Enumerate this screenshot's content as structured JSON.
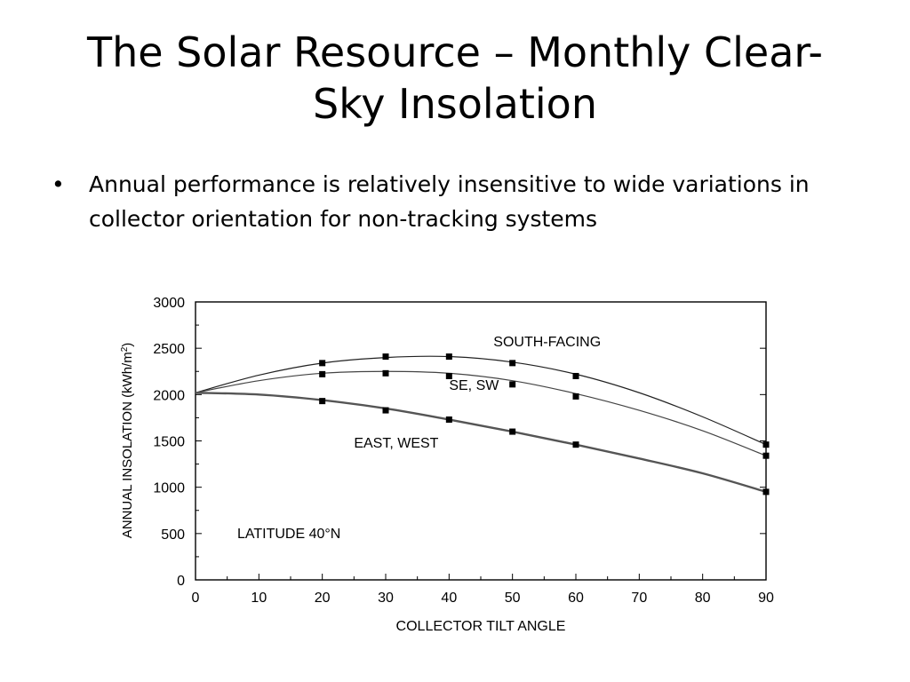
{
  "slide": {
    "title_line1": "The Solar Resource – Monthly Clear-",
    "title_line2": "Sky Insolation",
    "bullet_symbol": "•",
    "bullet_text": "Annual performance is relatively insensitive to wide variations in collector orientation for non-tracking systems"
  },
  "chart_data": {
    "type": "line",
    "xlabel": "COLLECTOR TILT ANGLE",
    "ylabel_main": "ANNUAL INSOLATION (kWh/m",
    "ylabel_sup": "2",
    "ylabel_close": ")",
    "xlim": [
      0,
      90
    ],
    "ylim": [
      0,
      3000
    ],
    "xticks": [
      0,
      10,
      20,
      30,
      40,
      50,
      60,
      70,
      80,
      90
    ],
    "yticks": [
      0,
      500,
      1000,
      1500,
      2000,
      2500,
      3000
    ],
    "annotation": "LATITUDE 40°N",
    "series": [
      {
        "name": "SOUTH-FACING",
        "curve": [
          [
            0,
            2020
          ],
          [
            10,
            2210
          ],
          [
            20,
            2340
          ],
          [
            30,
            2400
          ],
          [
            40,
            2410
          ],
          [
            50,
            2350
          ],
          [
            60,
            2220
          ],
          [
            70,
            2020
          ],
          [
            80,
            1760
          ],
          [
            90,
            1460
          ]
        ],
        "markers": [
          [
            20,
            2340
          ],
          [
            30,
            2410
          ],
          [
            40,
            2410
          ],
          [
            50,
            2340
          ],
          [
            60,
            2200
          ],
          [
            90,
            1460
          ]
        ]
      },
      {
        "name": "SE, SW",
        "curve": [
          [
            0,
            2020
          ],
          [
            10,
            2150
          ],
          [
            20,
            2230
          ],
          [
            30,
            2250
          ],
          [
            40,
            2230
          ],
          [
            50,
            2150
          ],
          [
            60,
            2010
          ],
          [
            70,
            1830
          ],
          [
            80,
            1610
          ],
          [
            90,
            1340
          ]
        ],
        "markers": [
          [
            20,
            2220
          ],
          [
            30,
            2230
          ],
          [
            40,
            2200
          ],
          [
            50,
            2110
          ],
          [
            60,
            1980
          ],
          [
            90,
            1340
          ]
        ]
      },
      {
        "name": "EAST, WEST",
        "curve": [
          [
            0,
            2020
          ],
          [
            10,
            2000
          ],
          [
            20,
            1940
          ],
          [
            30,
            1850
          ],
          [
            40,
            1730
          ],
          [
            50,
            1600
          ],
          [
            60,
            1460
          ],
          [
            70,
            1310
          ],
          [
            80,
            1150
          ],
          [
            90,
            950
          ]
        ],
        "markers": [
          [
            20,
            1930
          ],
          [
            30,
            1830
          ],
          [
            40,
            1730
          ],
          [
            50,
            1600
          ],
          [
            60,
            1460
          ],
          [
            90,
            950
          ]
        ]
      }
    ]
  }
}
